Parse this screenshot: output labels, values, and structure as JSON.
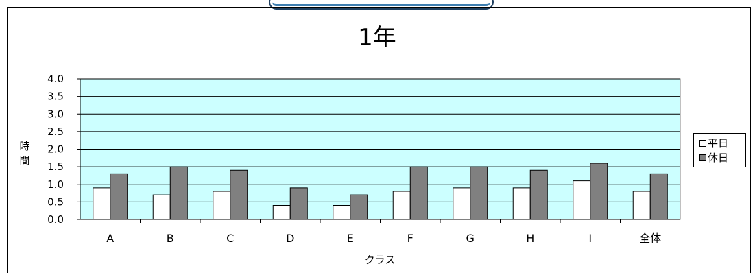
{
  "chart_data": {
    "type": "bar",
    "title": "1年",
    "xlabel": "クラス",
    "ylabel": "時間",
    "categories": [
      "A",
      "B",
      "C",
      "D",
      "E",
      "F",
      "G",
      "H",
      "I",
      "全体"
    ],
    "series": [
      {
        "name": "平日",
        "values": [
          0.9,
          0.7,
          0.8,
          0.4,
          0.4,
          0.8,
          0.9,
          0.9,
          1.1,
          0.8
        ],
        "color": "#ffffff"
      },
      {
        "name": "休日",
        "values": [
          1.3,
          1.5,
          1.4,
          0.9,
          0.7,
          1.5,
          1.5,
          1.4,
          1.6,
          1.3
        ],
        "color": "#808080"
      }
    ],
    "ylim": [
      0,
      4.0
    ],
    "yticks": [
      "0.0",
      "0.5",
      "1.0",
      "1.5",
      "2.0",
      "2.5",
      "3.0",
      "3.5",
      "4.0"
    ],
    "grid": true,
    "plot_background": "#ccffff",
    "legend_position": "right"
  }
}
